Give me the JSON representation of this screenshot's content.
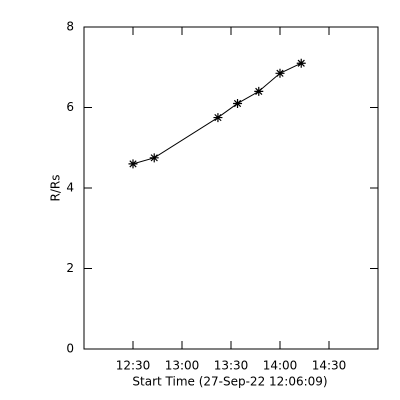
{
  "chart_data": {
    "type": "line",
    "xlabel": "Start Time (27-Sep-22 12:06:09)",
    "ylabel": "R/Rs",
    "x": [
      "12:30",
      "12:43",
      "13:22",
      "13:34",
      "13:47",
      "14:00",
      "14:13"
    ],
    "series": [
      {
        "values": [
          4.6,
          4.75,
          5.75,
          6.1,
          6.4,
          6.85,
          7.1
        ],
        "color": "#000000",
        "marker": "asterisk"
      }
    ],
    "xlim": [
      "12:00",
      "15:00"
    ],
    "xticks": [
      "12:30",
      "13:00",
      "13:30",
      "14:00",
      "14:30"
    ],
    "ylim": [
      0,
      8
    ],
    "yticks": [
      0,
      2,
      4,
      6,
      8
    ]
  }
}
